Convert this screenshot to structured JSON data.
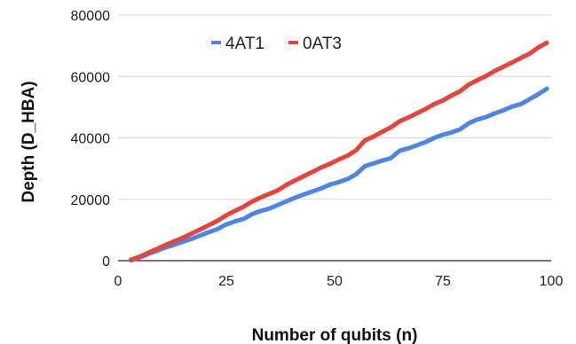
{
  "chart_data": {
    "type": "line",
    "title": "",
    "xlabel": "Number of qubits (n)",
    "ylabel": "Depth  (D_HBA)",
    "xlim": [
      0,
      100
    ],
    "ylim": [
      0,
      80000
    ],
    "x_ticks": [
      0,
      25,
      50,
      75,
      100
    ],
    "y_ticks": [
      0,
      20000,
      40000,
      60000,
      80000
    ],
    "grid": "horizontal",
    "legend_position": "top-center",
    "x": [
      3,
      5,
      7,
      9,
      11,
      13,
      15,
      17,
      19,
      21,
      23,
      25,
      27,
      29,
      31,
      33,
      35,
      37,
      39,
      41,
      43,
      45,
      47,
      49,
      51,
      53,
      55,
      57,
      59,
      61,
      63,
      65,
      67,
      69,
      71,
      73,
      75,
      77,
      79,
      81,
      83,
      85,
      87,
      89,
      91,
      93,
      95,
      97,
      99
    ],
    "series": [
      {
        "name": "4AT1",
        "color": "#4a86e8",
        "values": [
          100,
          1000,
          2200,
          3200,
          4300,
          5200,
          6200,
          7100,
          8200,
          9300,
          10300,
          11800,
          12800,
          13600,
          15200,
          16200,
          17000,
          18200,
          19400,
          20600,
          21600,
          22600,
          23600,
          24800,
          25600,
          26600,
          28200,
          30800,
          31700,
          32600,
          33400,
          35800,
          36600,
          37600,
          38600,
          40000,
          41000,
          41800,
          42800,
          44800,
          46000,
          46800,
          48000,
          49000,
          50200,
          51000,
          52600,
          54200,
          56000
        ]
      },
      {
        "name": "0AT3",
        "color": "#e8433a",
        "values": [
          300,
          1300,
          2600,
          3800,
          5100,
          6300,
          7500,
          8800,
          10200,
          11600,
          13000,
          14800,
          16200,
          17600,
          19300,
          20600,
          21800,
          23000,
          24800,
          26200,
          27600,
          29000,
          30400,
          31600,
          33000,
          34200,
          36000,
          39200,
          40400,
          42000,
          43400,
          45400,
          46600,
          48000,
          49400,
          51000,
          52200,
          53800,
          55200,
          57400,
          58800,
          60200,
          61800,
          63200,
          64600,
          66000,
          67400,
          69400,
          71000
        ]
      }
    ]
  }
}
